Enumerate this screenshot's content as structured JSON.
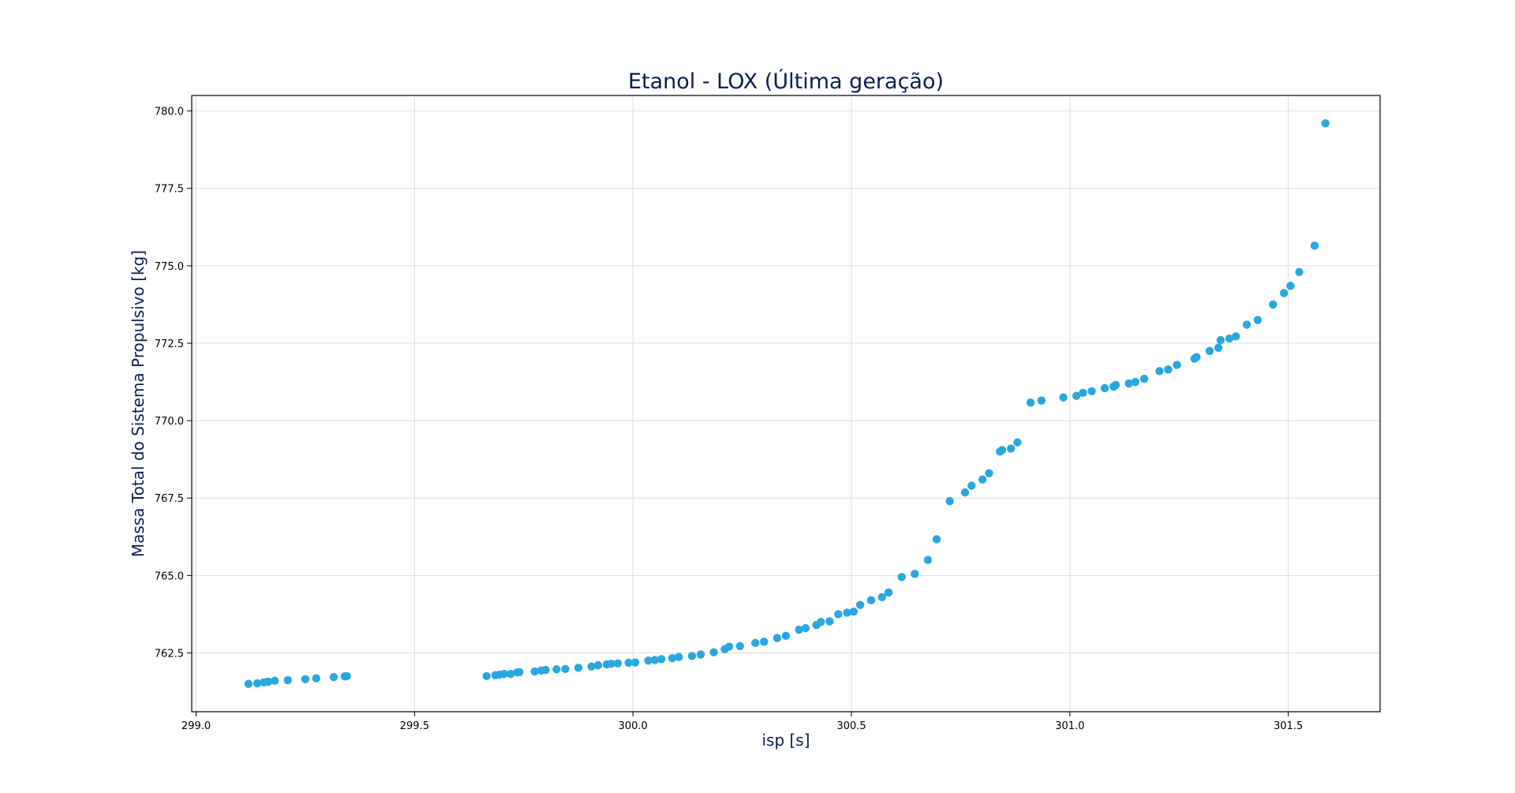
{
  "chart_data": {
    "type": "scatter",
    "title": "Etanol - LOX (Última geração)",
    "xlabel": "isp [s]",
    "ylabel": "Massa Total do Sistema Propulsivo [kg]",
    "xlim": [
      298.99,
      301.71
    ],
    "ylim": [
      760.6,
      780.5
    ],
    "xticks": [
      "299.0",
      "299.5",
      "300.0",
      "300.5",
      "301.0",
      "301.5"
    ],
    "yticks": [
      "762.5",
      "765.0",
      "767.5",
      "770.0",
      "772.5",
      "775.0",
      "777.5",
      "780.0"
    ],
    "grid": true,
    "colors": {
      "points": "#29a8e0",
      "title": "#0b1f52",
      "axis_label": "#0b1f52",
      "grid": "#dddddd",
      "frame": "#000000"
    },
    "series": [
      {
        "x": [
          299.12,
          299.14,
          299.155,
          299.165,
          299.18,
          299.21,
          299.25,
          299.275,
          299.315,
          299.34,
          299.345,
          299.665,
          299.685,
          299.695,
          299.705,
          299.72,
          299.735,
          299.74,
          299.775,
          299.79,
          299.8,
          299.825,
          299.845,
          299.875,
          299.905,
          299.92,
          299.94,
          299.95,
          299.965,
          299.99,
          300.005,
          300.035,
          300.05,
          300.065,
          300.09,
          300.105,
          300.135,
          300.155,
          300.185,
          300.21,
          300.22,
          300.245,
          300.28,
          300.3,
          300.33,
          300.35,
          300.38,
          300.395,
          300.42,
          300.43,
          300.45,
          300.47,
          300.49,
          300.505,
          300.52,
          300.545,
          300.57,
          300.585,
          300.615,
          300.645,
          300.675,
          300.695,
          300.725,
          300.76,
          300.775,
          300.8,
          300.815,
          300.84,
          300.845,
          300.865,
          300.88,
          300.91,
          300.935,
          300.985,
          301.015,
          301.03,
          301.05,
          301.08,
          301.1,
          301.105,
          301.135,
          301.15,
          301.17,
          301.205,
          301.225,
          301.245,
          301.285,
          301.29,
          301.32,
          301.34,
          301.345,
          301.365,
          301.38,
          301.405,
          301.43,
          301.465,
          301.49,
          301.505,
          301.525,
          301.56,
          301.585
        ],
        "y": [
          761.5,
          761.52,
          761.55,
          761.57,
          761.6,
          761.62,
          761.65,
          761.68,
          761.72,
          761.74,
          761.75,
          761.75,
          761.78,
          761.8,
          761.82,
          761.82,
          761.87,
          761.88,
          761.9,
          761.93,
          761.95,
          761.97,
          761.98,
          762.02,
          762.06,
          762.1,
          762.13,
          762.15,
          762.16,
          762.18,
          762.19,
          762.25,
          762.27,
          762.3,
          762.33,
          762.37,
          762.4,
          762.45,
          762.52,
          762.62,
          762.7,
          762.72,
          762.82,
          762.86,
          762.98,
          763.05,
          763.25,
          763.3,
          763.4,
          763.5,
          763.52,
          763.75,
          763.8,
          763.83,
          764.05,
          764.2,
          764.3,
          764.45,
          764.95,
          765.05,
          765.5,
          766.17,
          767.4,
          767.68,
          767.9,
          768.1,
          768.3,
          769.0,
          769.05,
          769.1,
          769.3,
          770.58,
          770.65,
          770.75,
          770.8,
          770.9,
          770.95,
          771.05,
          771.1,
          771.15,
          771.2,
          771.25,
          771.35,
          771.6,
          771.65,
          771.8,
          772.0,
          772.05,
          772.25,
          772.35,
          772.6,
          772.65,
          772.72,
          773.1,
          773.25,
          773.75,
          774.12,
          774.35,
          774.8,
          775.65,
          779.6
        ]
      }
    ]
  }
}
